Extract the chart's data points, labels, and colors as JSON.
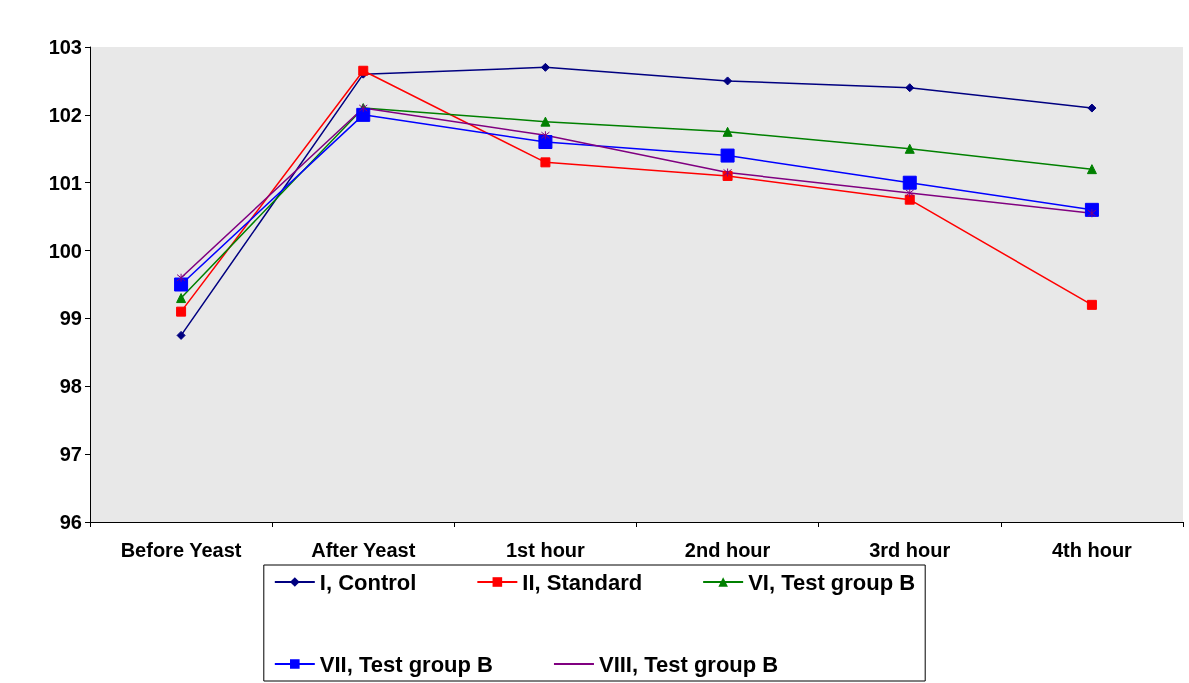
{
  "chart_data": {
    "type": "line",
    "categories": [
      "Before Yeast",
      "After Yeast",
      "1st hour",
      "2nd hour",
      "3rd hour",
      "4th hour"
    ],
    "series": [
      {
        "name": "I, Control",
        "color": "#000080",
        "marker": "diamond",
        "values": [
          98.75,
          102.6,
          102.7,
          102.5,
          102.4,
          102.1
        ]
      },
      {
        "name": "II, Standard",
        "color": "#ff0000",
        "marker": "square",
        "values": [
          99.1,
          102.65,
          101.3,
          101.1,
          100.75,
          99.2
        ]
      },
      {
        "name": "VI, Test group B",
        "color": "#008000",
        "marker": "triangle",
        "values": [
          99.3,
          102.1,
          101.9,
          101.75,
          101.5,
          101.2
        ]
      },
      {
        "name": "VII, Test group B",
        "color": "#0000ff",
        "marker": "square",
        "values": [
          99.5,
          102.0,
          101.6,
          101.4,
          101.0,
          100.6
        ]
      },
      {
        "name": "VIII, Test group B",
        "color": "#800080",
        "marker": "cross",
        "values": [
          99.6,
          102.1,
          101.7,
          101.15,
          100.85,
          100.55
        ]
      }
    ],
    "ylim": [
      96,
      103
    ],
    "yticks": [
      96,
      97,
      98,
      99,
      100,
      101,
      102,
      103
    ],
    "grid": false,
    "legend": "bottom",
    "line_style": "solid"
  }
}
